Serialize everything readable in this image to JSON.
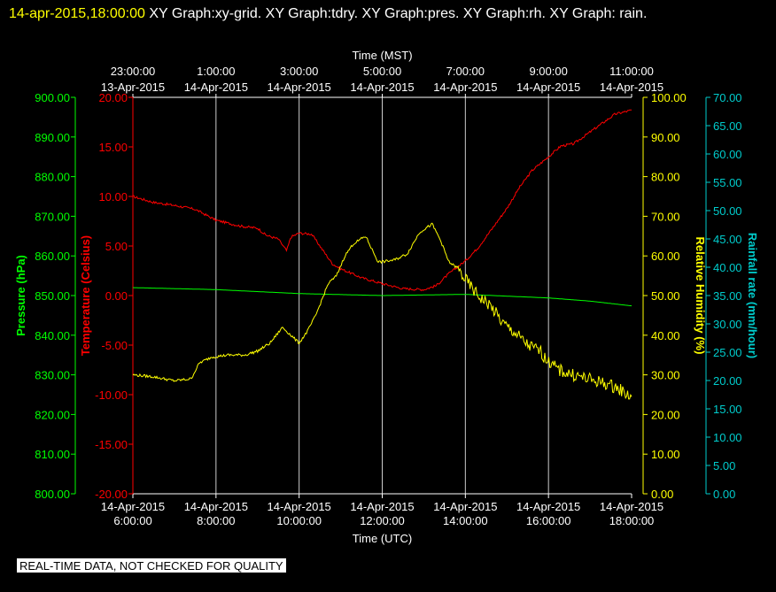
{
  "title": {
    "timestamp": "14-apr-2015,18:00:00",
    "rest": "  XY Graph:xy-grid.  XY Graph:tdry.  XY Graph:pres.  XY Graph:rh.  XY Graph: rain."
  },
  "notice": "REAL-TIME DATA, NOT CHECKED FOR QUALITY",
  "colors": {
    "background": "#000000",
    "temperature": "#ff0000",
    "pressure": "#00ff00",
    "humidity": "#ffff00",
    "rainfall": "#00cccc",
    "grid": "#ffffff"
  },
  "chart_data": {
    "type": "line",
    "grid": true,
    "x_bottom": {
      "title": "Time (UTC)",
      "ticks": [
        {
          "line1": "14-Apr-2015",
          "line2": "6:00:00"
        },
        {
          "line1": "14-Apr-2015",
          "line2": "8:00:00"
        },
        {
          "line1": "14-Apr-2015",
          "line2": "10:00:00"
        },
        {
          "line1": "14-Apr-2015",
          "line2": "12:00:00"
        },
        {
          "line1": "14-Apr-2015",
          "line2": "14:00:00"
        },
        {
          "line1": "14-Apr-2015",
          "line2": "16:00:00"
        },
        {
          "line1": "14-Apr-2015",
          "line2": "18:00:00"
        }
      ],
      "range_utc_hours": [
        6,
        18
      ]
    },
    "x_top": {
      "title": "Time (MST)",
      "ticks": [
        {
          "line1": "23:00:00",
          "line2": "13-Apr-2015"
        },
        {
          "line1": "1:00:00",
          "line2": "14-Apr-2015"
        },
        {
          "line1": "3:00:00",
          "line2": "14-Apr-2015"
        },
        {
          "line1": "5:00:00",
          "line2": "14-Apr-2015"
        },
        {
          "line1": "7:00:00",
          "line2": "14-Apr-2015"
        },
        {
          "line1": "9:00:00",
          "line2": "14-Apr-2015"
        },
        {
          "line1": "11:00:00",
          "line2": "14-Apr-2015"
        }
      ]
    },
    "y_axes": {
      "pressure": {
        "title": "Pressure (hPa)",
        "range": [
          800,
          900
        ],
        "ticks": [
          "800.00",
          "810.00",
          "820.00",
          "830.00",
          "840.00",
          "850.00",
          "860.00",
          "870.00",
          "880.00",
          "890.00",
          "900.00"
        ]
      },
      "temperature": {
        "title": "Temperature (Celsius)",
        "range": [
          -20,
          20
        ],
        "ticks": [
          "-20.00",
          "-15.00",
          "-10.00",
          "-5.00",
          "0.00",
          "5.00",
          "10.00",
          "15.00",
          "20.00"
        ]
      },
      "humidity": {
        "title": "Relative Humidity (%)",
        "range": [
          0,
          100
        ],
        "ticks": [
          "0.00",
          "10.00",
          "20.00",
          "30.00",
          "40.00",
          "50.00",
          "60.00",
          "70.00",
          "80.00",
          "90.00",
          "100.00"
        ]
      },
      "rainfall": {
        "title": "Rainfall rate (mm/hour)",
        "range": [
          0,
          70
        ],
        "ticks": [
          "0.00",
          "5.00",
          "10.00",
          "15.00",
          "20.00",
          "25.00",
          "30.00",
          "35.00",
          "40.00",
          "45.00",
          "50.00",
          "55.00",
          "60.00",
          "65.00",
          "70.00"
        ]
      }
    },
    "series": [
      {
        "key": "temperature",
        "axis": "temperature",
        "x": [
          6.0,
          6.5,
          7.0,
          7.5,
          8.0,
          8.3,
          8.6,
          9.0,
          9.2,
          9.5,
          9.7,
          9.8,
          10.0,
          10.3,
          10.5,
          10.8,
          11.0,
          11.5,
          12.0,
          12.5,
          13.0,
          13.3,
          13.6,
          14.0,
          14.3,
          14.6,
          15.0,
          15.3,
          15.6,
          16.0,
          16.3,
          16.6,
          17.0,
          17.3,
          17.6,
          18.0
        ],
        "y": [
          10.0,
          9.4,
          9.1,
          8.7,
          7.6,
          7.3,
          7.0,
          6.8,
          6.1,
          5.7,
          4.5,
          5.9,
          6.3,
          6.2,
          5.0,
          3.2,
          2.7,
          1.8,
          1.2,
          0.7,
          0.6,
          1.0,
          2.2,
          3.5,
          4.8,
          6.5,
          8.8,
          10.9,
          12.6,
          14.0,
          15.1,
          15.3,
          16.5,
          17.4,
          18.3,
          18.7
        ]
      },
      {
        "key": "pressure",
        "axis": "pressure",
        "x": [
          6.0,
          8.0,
          10.0,
          12.0,
          14.0,
          16.0,
          17.0,
          18.0
        ],
        "y": [
          852.0,
          851.5,
          850.5,
          850.0,
          850.3,
          849.4,
          848.6,
          847.4
        ]
      },
      {
        "key": "humidity",
        "axis": "humidity",
        "x": [
          6.0,
          6.5,
          7.0,
          7.4,
          7.6,
          7.9,
          8.3,
          8.7,
          9.0,
          9.3,
          9.6,
          9.9,
          10.0,
          10.2,
          10.4,
          10.7,
          10.9,
          11.1,
          11.3,
          11.6,
          11.9,
          12.0,
          12.3,
          12.6,
          12.9,
          13.2,
          13.4,
          13.6,
          13.8,
          14.0,
          14.3,
          14.6,
          14.9,
          15.2,
          15.5,
          15.8,
          16.0,
          16.3,
          16.6,
          17.0,
          17.3,
          17.6,
          18.0
        ],
        "y": [
          30.0,
          29.5,
          28.5,
          29.0,
          33.0,
          34.5,
          35.0,
          35.0,
          36.0,
          38.0,
          42.0,
          39.0,
          38.0,
          41.0,
          45.0,
          53.0,
          55.0,
          60.0,
          63.0,
          65.0,
          58.5,
          58.5,
          59.0,
          60.5,
          66.0,
          68.0,
          64.0,
          58.5,
          57.0,
          54.0,
          50.0,
          47.5,
          43.0,
          40.5,
          37.5,
          36.0,
          33.0,
          31.0,
          30.0,
          28.8,
          28.0,
          27.0,
          24.5
        ]
      }
    ]
  }
}
